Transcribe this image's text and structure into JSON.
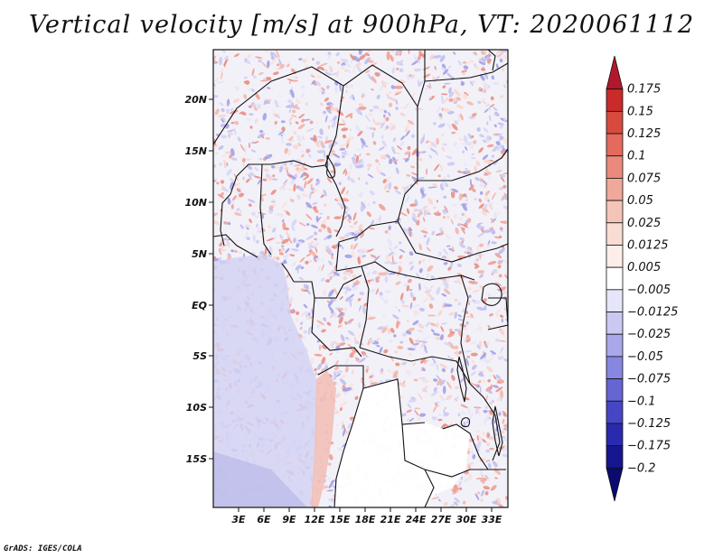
{
  "title": "Vertical velocity [m/s] at 900hPa, VT: 2020061112",
  "credit": "GrADS: IGES/COLA",
  "map": {
    "lat_labels": [
      "20N",
      "15N",
      "10N",
      "5N",
      "EQ",
      "5S",
      "10S",
      "15S"
    ],
    "lon_labels": [
      "3E",
      "6E",
      "9E",
      "12E",
      "15E",
      "18E",
      "21E",
      "24E",
      "27E",
      "30E",
      "33E"
    ]
  },
  "colorbar": {
    "labels": [
      "0.175",
      "0.15",
      "0.125",
      "0.1",
      "0.075",
      "0.05",
      "0.025",
      "0.0125",
      "0.005",
      "−0.005",
      "−0.0125",
      "−0.025",
      "−0.05",
      "−0.075",
      "−0.1",
      "−0.125",
      "−0.175",
      "−0.2"
    ],
    "colors": [
      "#b2182b",
      "#c92a2a",
      "#d84a3e",
      "#e36a5c",
      "#ea8a7c",
      "#f0a89a",
      "#f5c4b8",
      "#f9dcd3",
      "#fdeeea",
      "#ffffff",
      "#e6e6fa",
      "#c9c9f2",
      "#a8a8ea",
      "#8787e0",
      "#6565d4",
      "#4646c4",
      "#2a2aae",
      "#16168f",
      "#0a0a70"
    ]
  },
  "chart_data": {
    "type": "heatmap",
    "title": "Vertical velocity [m/s] at 900hPa, VT: 2020061112",
    "variable": "Vertical velocity",
    "units": "m/s",
    "level": "900hPa",
    "valid_time": "2020061112",
    "x_ticks": [
      "3E",
      "6E",
      "9E",
      "12E",
      "15E",
      "18E",
      "21E",
      "24E",
      "27E",
      "30E",
      "33E"
    ],
    "y_ticks": [
      "20N",
      "15N",
      "10N",
      "5N",
      "EQ",
      "5S",
      "10S",
      "15S"
    ],
    "color_levels": [
      -0.2,
      -0.175,
      -0.125,
      -0.1,
      -0.075,
      -0.05,
      -0.025,
      -0.0125,
      -0.005,
      0.005,
      0.0125,
      0.025,
      0.05,
      0.075,
      0.1,
      0.125,
      0.15,
      0.175
    ]
  }
}
